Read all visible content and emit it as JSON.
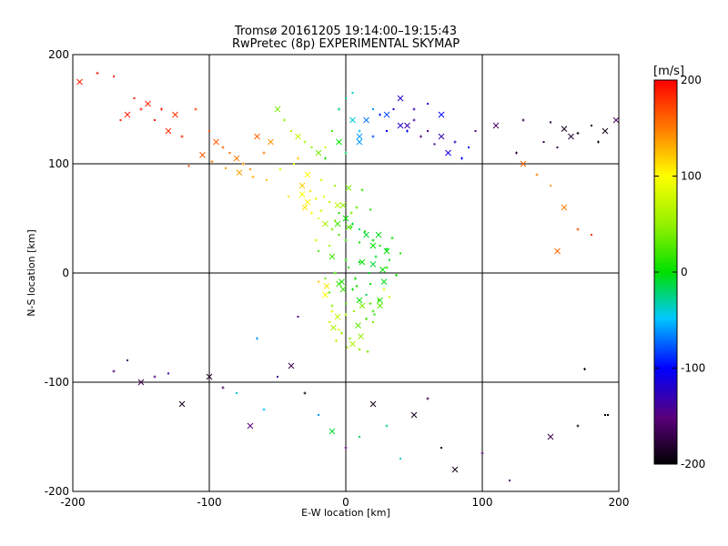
{
  "chart_data": {
    "type": "scatter",
    "title": "Tromsø 20161205 19:14:00–19:15:43",
    "subtitle": "RwPretec (8p) EXPERIMENTAL SKYMAP",
    "xlabel": "E-W location [km]",
    "ylabel": "N-S location [km]",
    "xlim": [
      -200,
      200
    ],
    "ylim": [
      -200,
      200
    ],
    "xticks": [
      -200,
      -100,
      0,
      100,
      200
    ],
    "yticks": [
      -200,
      -100,
      0,
      100,
      200
    ],
    "grid": true,
    "colorbar": {
      "label": "[m/s]",
      "min": -200,
      "max": 200,
      "ticks": [
        200,
        100,
        0,
        -100,
        -200
      ],
      "colormap": "rainbow (black-purple-blue-cyan-green-yellow-red)"
    },
    "markers": [
      "x",
      "+",
      "."
    ],
    "points_x": [
      -195,
      -182,
      -170,
      -160,
      -150,
      -140,
      -130,
      -120,
      -155,
      -145,
      -135,
      -165,
      -125,
      -110,
      -100,
      -95,
      -90,
      -85,
      -80,
      -75,
      -70,
      -65,
      -60,
      -115,
      -105,
      -98,
      -88,
      -78,
      -68,
      -58,
      -50,
      -45,
      -40,
      -35,
      -30,
      -25,
      -20,
      -15,
      -10,
      -5,
      0,
      5,
      10,
      -48,
      -38,
      -28,
      -18,
      -8,
      2,
      12,
      -42,
      -32,
      -22,
      -12,
      -2,
      8,
      18,
      -55,
      -35,
      -15,
      -30,
      -25,
      -20,
      -15,
      -10,
      -5,
      -28,
      -18,
      -8,
      2,
      -22,
      -12,
      -32,
      -26,
      -16,
      -6,
      4,
      -20,
      -10,
      0,
      10,
      20,
      30,
      -15,
      -5,
      5,
      15,
      25,
      -10,
      0,
      10,
      20,
      -5,
      0,
      5,
      10,
      15,
      20,
      25,
      30,
      -8,
      2,
      12,
      22,
      32,
      -3,
      7,
      17,
      27,
      37,
      -12,
      -2,
      8,
      18,
      28,
      0,
      10,
      20,
      30,
      40,
      -6,
      4,
      14,
      24,
      34,
      -12,
      -6,
      0,
      6,
      12,
      18,
      24,
      -9,
      -3,
      3,
      9,
      15,
      21,
      -15,
      -10,
      -5,
      5,
      10,
      20,
      25,
      -7,
      1,
      11,
      16,
      -20,
      -14,
      28,
      32,
      10,
      20,
      30,
      40,
      50,
      60,
      70,
      80,
      90,
      15,
      25,
      35,
      45,
      55,
      65,
      75,
      85,
      5,
      40,
      50,
      60,
      70,
      -5,
      0,
      5,
      10,
      20,
      30,
      45,
      95,
      110,
      130,
      150,
      160,
      170,
      180,
      190,
      125,
      145,
      165,
      185,
      155,
      198,
      -170,
      -160,
      -150,
      -140,
      -130,
      -100,
      -90,
      -80,
      -70,
      -60,
      -50,
      -40,
      -30,
      -20,
      -10,
      0,
      10,
      20,
      30,
      40,
      50,
      60,
      70,
      80,
      100,
      120,
      150,
      170,
      190,
      -120,
      -65,
      -35,
      130,
      140,
      150,
      160,
      170,
      180,
      155,
      175,
      192
    ],
    "points_y": [
      175,
      183,
      180,
      145,
      150,
      140,
      130,
      125,
      160,
      155,
      150,
      140,
      145,
      150,
      130,
      120,
      115,
      110,
      105,
      100,
      95,
      125,
      110,
      98,
      108,
      102,
      96,
      92,
      88,
      85,
      150,
      140,
      130,
      125,
      120,
      115,
      110,
      105,
      130,
      120,
      110,
      140,
      125,
      95,
      100,
      90,
      85,
      80,
      78,
      76,
      70,
      72,
      68,
      65,
      62,
      60,
      58,
      120,
      105,
      115,
      60,
      55,
      50,
      45,
      40,
      35,
      65,
      57,
      48,
      42,
      30,
      25,
      80,
      75,
      70,
      62,
      55,
      20,
      15,
      12,
      10,
      8,
      5,
      -5,
      -10,
      -15,
      -20,
      -25,
      -30,
      -28,
      -25,
      -35,
      55,
      50,
      45,
      40,
      35,
      30,
      25,
      20,
      0,
      5,
      10,
      15,
      12,
      -8,
      -5,
      0,
      3,
      -2,
      -18,
      -15,
      -12,
      -10,
      -8,
      30,
      28,
      25,
      22,
      18,
      45,
      42,
      38,
      35,
      32,
      -45,
      -40,
      -38,
      -35,
      -30,
      -28,
      -25,
      -50,
      -55,
      -60,
      -48,
      -42,
      -38,
      -20,
      -35,
      -52,
      -65,
      -70,
      -45,
      -30,
      -62,
      -68,
      -58,
      -72,
      -8,
      -12,
      -15,
      -22,
      120,
      125,
      130,
      135,
      140,
      130,
      125,
      120,
      115,
      140,
      145,
      150,
      135,
      125,
      118,
      110,
      105,
      165,
      160,
      150,
      155,
      145,
      150,
      160,
      140,
      130,
      150,
      145,
      130,
      130,
      135,
      140,
      138,
      132,
      128,
      135,
      130,
      110,
      120,
      125,
      120,
      115,
      140,
      -90,
      -80,
      -100,
      -95,
      -92,
      -95,
      -105,
      -110,
      -140,
      -125,
      -95,
      -85,
      -110,
      -130,
      -145,
      -160,
      -150,
      -120,
      -140,
      -170,
      -130,
      -115,
      -160,
      -180,
      -165,
      -190,
      -150,
      -140,
      -130,
      -120,
      -60,
      -40,
      100,
      90,
      80,
      60,
      40,
      35,
      20,
      -88,
      -130
    ],
    "points_v": [
      190,
      190,
      185,
      190,
      185,
      190,
      185,
      185,
      190,
      185,
      190,
      185,
      180,
      175,
      170,
      165,
      160,
      155,
      150,
      145,
      140,
      160,
      150,
      170,
      165,
      150,
      140,
      135,
      130,
      120,
      40,
      50,
      60,
      70,
      60,
      50,
      40,
      10,
      20,
      0,
      -20,
      -40,
      -60,
      80,
      90,
      100,
      80,
      60,
      40,
      20,
      110,
      100,
      90,
      70,
      50,
      30,
      10,
      140,
      120,
      80,
      110,
      100,
      90,
      60,
      40,
      20,
      105,
      80,
      50,
      30,
      80,
      60,
      120,
      110,
      90,
      70,
      40,
      30,
      20,
      10,
      0,
      -10,
      10,
      40,
      20,
      0,
      -20,
      10,
      50,
      30,
      0,
      20,
      10,
      0,
      -10,
      -20,
      -10,
      0,
      10,
      0,
      20,
      10,
      0,
      -10,
      -5,
      10,
      0,
      -5,
      0,
      5,
      30,
      20,
      10,
      0,
      -5,
      15,
      5,
      0,
      -5,
      10,
      20,
      10,
      0,
      -5,
      5,
      80,
      70,
      60,
      50,
      40,
      30,
      20,
      60,
      50,
      40,
      30,
      20,
      10,
      100,
      90,
      80,
      60,
      50,
      40,
      30,
      70,
      60,
      50,
      40,
      120,
      110,
      90,
      80,
      -60,
      -80,
      -100,
      -120,
      -140,
      -150,
      -130,
      -120,
      -100,
      -70,
      -90,
      -110,
      -130,
      -150,
      -140,
      -110,
      -100,
      -40,
      -120,
      -130,
      -110,
      -100,
      -20,
      -30,
      -40,
      -50,
      -60,
      -80,
      -100,
      -150,
      -160,
      -170,
      -180,
      -190,
      -200,
      -195,
      -190,
      -180,
      -170,
      -180,
      -190,
      -175,
      -160,
      -150,
      -160,
      -170,
      -150,
      -140,
      -180,
      -160,
      -40,
      -150,
      -50,
      -140,
      -170,
      -190,
      -60,
      -10,
      -150,
      -20,
      -190,
      -30,
      -40,
      -190,
      -170,
      -200,
      -190,
      -160,
      -150,
      -170,
      -190,
      -200,
      -190,
      -60,
      -150,
      160,
      150,
      140,
      150,
      170,
      180,
      160,
      -190,
      -200
    ]
  }
}
